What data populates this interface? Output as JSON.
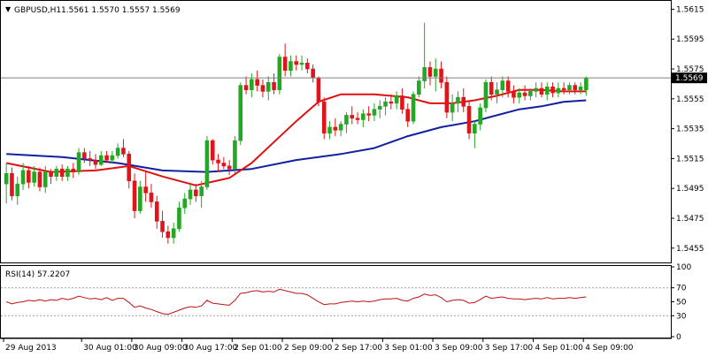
{
  "header": {
    "symbol": "GBPUSD,H1",
    "ohlc": "1.5561 1.5570 1.5557 1.5569"
  },
  "chart_data": [
    {
      "type": "candlestick",
      "title": "GBPUSD,H1 1.5561 1.5570 1.5557 1.5569",
      "ylim": [
        1.5446,
        1.562
      ],
      "y_ticks": [
        "1.5615",
        "1.5595",
        "1.5575",
        "1.5555",
        "1.5535",
        "1.5515",
        "1.5495",
        "1.5475",
        "1.5455"
      ],
      "y_tick_values": [
        1.5615,
        1.5595,
        1.5575,
        1.5555,
        1.5535,
        1.5515,
        1.5495,
        1.5475,
        1.5455
      ],
      "current_price": 1.5569,
      "current_price_label": "1.5569",
      "x_labels": [
        "29 Aug 2013",
        "30 Aug 01:00",
        "30 Aug 09:00",
        "30 Aug 17:00",
        "2 Sep 01:00",
        "2 Sep 09:00",
        "2 Sep 17:00",
        "3 Sep 01:00",
        "3 Sep 09:00",
        "3 Sep 17:00",
        "4 Sep 01:00",
        "4 Sep 09:00"
      ],
      "x_label_bar_index": [
        0,
        14,
        23,
        32,
        41,
        50,
        59,
        68,
        77,
        86,
        95,
        104
      ],
      "colors": {
        "bull": "#22a822",
        "bear": "#e0151b",
        "ma_fast": "#e01010",
        "ma_slow": "#1020a0",
        "rsi": "#c01010",
        "grid": "#a0a0a0"
      },
      "candles": [
        [
          1.5498,
          1.5512,
          1.5485,
          1.5505
        ],
        [
          1.5505,
          1.5509,
          1.5487,
          1.549
        ],
        [
          1.549,
          1.5503,
          1.5484,
          1.5498
        ],
        [
          1.5498,
          1.5512,
          1.5494,
          1.5507
        ],
        [
          1.5507,
          1.551,
          1.5495,
          1.5499
        ],
        [
          1.5499,
          1.551,
          1.5496,
          1.5506
        ],
        [
          1.5506,
          1.5509,
          1.5493,
          1.5496
        ],
        [
          1.5496,
          1.551,
          1.5492,
          1.5506
        ],
        [
          1.5506,
          1.5508,
          1.5498,
          1.5503
        ],
        [
          1.5503,
          1.551,
          1.55,
          1.5508
        ],
        [
          1.5508,
          1.5511,
          1.55,
          1.5503
        ],
        [
          1.5503,
          1.551,
          1.55,
          1.5508
        ],
        [
          1.5508,
          1.5512,
          1.5502,
          1.5506
        ],
        [
          1.5506,
          1.5522,
          1.5504,
          1.5519
        ],
        [
          1.5519,
          1.5522,
          1.5512,
          1.5515
        ],
        [
          1.5515,
          1.552,
          1.551,
          1.5514
        ],
        [
          1.5514,
          1.5518,
          1.5508,
          1.5511
        ],
        [
          1.5511,
          1.552,
          1.551,
          1.5517
        ],
        [
          1.5517,
          1.552,
          1.5512,
          1.5514
        ],
        [
          1.5514,
          1.552,
          1.5512,
          1.5517
        ],
        [
          1.5517,
          1.5525,
          1.5515,
          1.5522
        ],
        [
          1.5522,
          1.5528,
          1.5516,
          1.5518
        ],
        [
          1.5518,
          1.552,
          1.5495,
          1.55
        ],
        [
          1.55,
          1.5505,
          1.5475,
          1.548
        ],
        [
          1.548,
          1.55,
          1.5478,
          1.5496
        ],
        [
          1.5496,
          1.5506,
          1.5486,
          1.5492
        ],
        [
          1.5492,
          1.5498,
          1.5482,
          1.5486
        ],
        [
          1.5486,
          1.549,
          1.5468,
          1.5473
        ],
        [
          1.5473,
          1.548,
          1.5462,
          1.5466
        ],
        [
          1.5466,
          1.547,
          1.5458,
          1.5462
        ],
        [
          1.5462,
          1.5472,
          1.5458,
          1.5468
        ],
        [
          1.5468,
          1.5486,
          1.5466,
          1.5482
        ],
        [
          1.5482,
          1.5492,
          1.5478,
          1.5488
        ],
        [
          1.5488,
          1.5498,
          1.5484,
          1.5494
        ],
        [
          1.5494,
          1.5498,
          1.5486,
          1.549
        ],
        [
          1.549,
          1.55,
          1.5482,
          1.5496
        ],
        [
          1.5496,
          1.553,
          1.5494,
          1.5527
        ],
        [
          1.5527,
          1.5528,
          1.5511,
          1.5514
        ],
        [
          1.5514,
          1.5518,
          1.5506,
          1.5512
        ],
        [
          1.5512,
          1.5516,
          1.5508,
          1.551
        ],
        [
          1.551,
          1.5514,
          1.5504,
          1.5508
        ],
        [
          1.5508,
          1.553,
          1.5505,
          1.5527
        ],
        [
          1.5527,
          1.5566,
          1.5524,
          1.5564
        ],
        [
          1.5564,
          1.557,
          1.5558,
          1.5561
        ],
        [
          1.5561,
          1.5572,
          1.5556,
          1.5568
        ],
        [
          1.5568,
          1.5574,
          1.556,
          1.5564
        ],
        [
          1.5564,
          1.5568,
          1.5556,
          1.556
        ],
        [
          1.556,
          1.557,
          1.5554,
          1.5566
        ],
        [
          1.5566,
          1.5572,
          1.5558,
          1.5561
        ],
        [
          1.5561,
          1.5585,
          1.5558,
          1.5583
        ],
        [
          1.5583,
          1.5592,
          1.557,
          1.5574
        ],
        [
          1.5574,
          1.5584,
          1.557,
          1.558
        ],
        [
          1.558,
          1.5584,
          1.5574,
          1.5578
        ],
        [
          1.5578,
          1.5584,
          1.5574,
          1.5579
        ],
        [
          1.5579,
          1.5582,
          1.5572,
          1.5575
        ],
        [
          1.5575,
          1.5578,
          1.5566,
          1.5569
        ],
        [
          1.5569,
          1.557,
          1.555,
          1.5553
        ],
        [
          1.5553,
          1.5556,
          1.5528,
          1.5532
        ],
        [
          1.5532,
          1.554,
          1.5528,
          1.5536
        ],
        [
          1.5536,
          1.5542,
          1.553,
          1.5534
        ],
        [
          1.5534,
          1.554,
          1.553,
          1.5538
        ],
        [
          1.5538,
          1.5546,
          1.5532,
          1.5544
        ],
        [
          1.5544,
          1.555,
          1.5538,
          1.5542
        ],
        [
          1.5542,
          1.5546,
          1.5538,
          1.5541
        ],
        [
          1.5541,
          1.5548,
          1.5536,
          1.5545
        ],
        [
          1.5545,
          1.555,
          1.554,
          1.5544
        ],
        [
          1.5544,
          1.5552,
          1.554,
          1.5548
        ],
        [
          1.5548,
          1.5554,
          1.5542,
          1.555
        ],
        [
          1.555,
          1.5556,
          1.5544,
          1.5553
        ],
        [
          1.5553,
          1.5558,
          1.5548,
          1.5552
        ],
        [
          1.5552,
          1.556,
          1.5548,
          1.5557
        ],
        [
          1.5557,
          1.5562,
          1.5545,
          1.5548
        ],
        [
          1.5548,
          1.5552,
          1.5536,
          1.554
        ],
        [
          1.554,
          1.556,
          1.5538,
          1.5558
        ],
        [
          1.5558,
          1.557,
          1.5556,
          1.5567
        ],
        [
          1.5567,
          1.5606,
          1.5562,
          1.5576
        ],
        [
          1.5576,
          1.558,
          1.5564,
          1.557
        ],
        [
          1.557,
          1.5582,
          1.556,
          1.5575
        ],
        [
          1.5575,
          1.558,
          1.5562,
          1.5566
        ],
        [
          1.5566,
          1.557,
          1.5542,
          1.5546
        ],
        [
          1.5546,
          1.5558,
          1.554,
          1.5552
        ],
        [
          1.5552,
          1.556,
          1.5546,
          1.5556
        ],
        [
          1.5556,
          1.5562,
          1.5546,
          1.555
        ],
        [
          1.555,
          1.5554,
          1.5528,
          1.5532
        ],
        [
          1.5532,
          1.554,
          1.5522,
          1.5538
        ],
        [
          1.5538,
          1.5552,
          1.5534,
          1.5549
        ],
        [
          1.5549,
          1.5568,
          1.5546,
          1.5566
        ],
        [
          1.5566,
          1.557,
          1.5554,
          1.5558
        ],
        [
          1.5558,
          1.5566,
          1.5552,
          1.5561
        ],
        [
          1.5561,
          1.557,
          1.5556,
          1.5567
        ],
        [
          1.5567,
          1.557,
          1.5556,
          1.556
        ],
        [
          1.556,
          1.5564,
          1.5552,
          1.5556
        ],
        [
          1.5556,
          1.5562,
          1.5552,
          1.5559
        ],
        [
          1.5559,
          1.5564,
          1.5554,
          1.5557
        ],
        [
          1.5557,
          1.5562,
          1.5554,
          1.556
        ],
        [
          1.556,
          1.5566,
          1.5556,
          1.5562
        ],
        [
          1.5562,
          1.5566,
          1.5556,
          1.5558
        ],
        [
          1.5558,
          1.5566,
          1.5554,
          1.5563
        ],
        [
          1.5563,
          1.5566,
          1.5556,
          1.5559
        ],
        [
          1.5559,
          1.5566,
          1.5556,
          1.5562
        ],
        [
          1.5562,
          1.5566,
          1.5558,
          1.5561
        ],
        [
          1.5561,
          1.5566,
          1.5558,
          1.5564
        ],
        [
          1.5564,
          1.5566,
          1.5558,
          1.5561
        ],
        [
          1.5561,
          1.5566,
          1.5558,
          1.5563
        ],
        [
          1.5561,
          1.557,
          1.5557,
          1.5569
        ]
      ],
      "ma_fast_points": [
        [
          0,
          1.5512
        ],
        [
          8,
          1.5506
        ],
        [
          16,
          1.5507
        ],
        [
          22,
          1.551
        ],
        [
          28,
          1.5503
        ],
        [
          34,
          1.5497
        ],
        [
          40,
          1.5502
        ],
        [
          44,
          1.5512
        ],
        [
          48,
          1.5526
        ],
        [
          52,
          1.554
        ],
        [
          56,
          1.5553
        ],
        [
          60,
          1.5558
        ],
        [
          66,
          1.5558
        ],
        [
          72,
          1.5556
        ],
        [
          76,
          1.5552
        ],
        [
          80,
          1.5552
        ],
        [
          84,
          1.5554
        ],
        [
          88,
          1.5557
        ],
        [
          92,
          1.5561
        ],
        [
          96,
          1.5561
        ],
        [
          100,
          1.556
        ],
        [
          104,
          1.556
        ]
      ],
      "ma_slow_points": [
        [
          0,
          1.5518
        ],
        [
          10,
          1.5516
        ],
        [
          20,
          1.5512
        ],
        [
          28,
          1.5507
        ],
        [
          36,
          1.5506
        ],
        [
          44,
          1.5508
        ],
        [
          52,
          1.5514
        ],
        [
          60,
          1.5518
        ],
        [
          66,
          1.5522
        ],
        [
          72,
          1.553
        ],
        [
          78,
          1.5536
        ],
        [
          84,
          1.554
        ],
        [
          88,
          1.5544
        ],
        [
          92,
          1.5548
        ],
        [
          96,
          1.555
        ],
        [
          100,
          1.5553
        ],
        [
          104,
          1.5554
        ]
      ]
    },
    {
      "type": "line",
      "title": "RSI(14) 57.2207",
      "ylim": [
        0,
        100
      ],
      "y_ticks": [
        "100",
        "70",
        "50",
        "30",
        "0"
      ],
      "y_tick_values": [
        100,
        70,
        50,
        30,
        0
      ],
      "levels": [
        70,
        30
      ],
      "series": [
        {
          "values": [
            50,
            47,
            49,
            50,
            52,
            51,
            53,
            51,
            53,
            52,
            55,
            53,
            55,
            58,
            56,
            54,
            55,
            53,
            56,
            52,
            55,
            55,
            49,
            42,
            44,
            41,
            39,
            36,
            33,
            32,
            35,
            38,
            41,
            43,
            42,
            44,
            52,
            48,
            47,
            46,
            45,
            52,
            62,
            63,
            65,
            66,
            64,
            65,
            64,
            68,
            66,
            64,
            62,
            62,
            60,
            55,
            50,
            46,
            47,
            47,
            49,
            50,
            51,
            50,
            51,
            50,
            51,
            53,
            54,
            54,
            55,
            52,
            51,
            55,
            57,
            61,
            59,
            60,
            56,
            50,
            52,
            53,
            52,
            48,
            49,
            53,
            58,
            55,
            56,
            57,
            55,
            54,
            54,
            53,
            54,
            55,
            54,
            56,
            54,
            55,
            55,
            56,
            55,
            56,
            57
          ]
        }
      ]
    }
  ]
}
